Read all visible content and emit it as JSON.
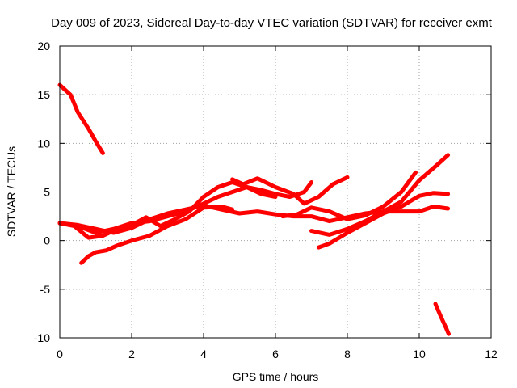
{
  "chart_data": {
    "type": "line",
    "title": "Day 009 of 2023, Sidereal Day-to-day VTEC variation (SDTVAR) for receiver exmt",
    "xlabel": "GPS time / hours",
    "ylabel": "SDTVAR / TECUs",
    "xlim": [
      0,
      12
    ],
    "ylim": [
      -10,
      20
    ],
    "xticks": [
      0,
      2,
      4,
      6,
      8,
      10,
      12
    ],
    "yticks": [
      -10,
      -5,
      0,
      5,
      10,
      15,
      20
    ],
    "grid": true,
    "legend": "none",
    "series_color": "#ff0000",
    "series": [
      {
        "name": "s1",
        "x": [
          0,
          0.3,
          0.5,
          0.8,
          1.0,
          1.2
        ],
        "y": [
          16,
          15,
          13.2,
          11.5,
          10.2,
          9
        ]
      },
      {
        "name": "s2",
        "x": [
          0,
          0.5,
          1.0,
          1.5,
          2.0,
          2.5,
          3.0,
          3.5,
          4.0,
          4.4,
          4.8,
          5.2,
          5.6,
          6.0,
          6.4,
          6.8,
          7.0
        ],
        "y": [
          1.8,
          1.5,
          0.8,
          1.2,
          1.8,
          2.0,
          2.5,
          3.0,
          3.8,
          4.5,
          5.0,
          5.5,
          5.2,
          4.8,
          4.5,
          5.0,
          6.0
        ]
      },
      {
        "name": "s3",
        "x": [
          0,
          0.5,
          1.0,
          1.5,
          2.0,
          2.5,
          3.0,
          3.5,
          4.0,
          4.5,
          5.0,
          5.5,
          6.0,
          6.5,
          7.0,
          7.5,
          8.0,
          8.5,
          9.0,
          9.5,
          10.0,
          10.4,
          10.8
        ],
        "y": [
          1.8,
          1.6,
          1.2,
          0.8,
          1.3,
          2.2,
          2.8,
          3.2,
          3.6,
          3.2,
          2.8,
          3.0,
          2.7,
          2.5,
          2.5,
          2.0,
          2.4,
          2.8,
          3.0,
          3.0,
          3.0,
          3.5,
          3.3
        ]
      },
      {
        "name": "s4",
        "x": [
          0,
          0.4,
          0.8,
          1.2,
          1.6,
          2.0,
          2.4,
          2.8,
          3.2,
          3.6,
          4.0,
          4.4,
          4.8,
          5.2,
          5.6,
          6.0
        ],
        "y": [
          1.8,
          1.5,
          0.3,
          0.5,
          1.2,
          1.6,
          2.4,
          1.5,
          2.2,
          3.0,
          4.5,
          5.5,
          6.0,
          5.5,
          4.8,
          4.5
        ]
      },
      {
        "name": "s5",
        "x": [
          0.6,
          0.8,
          1.0,
          1.3,
          1.6,
          2.0,
          2.5,
          3.0,
          3.5,
          4.0,
          4.5,
          4.8
        ],
        "y": [
          -2.3,
          -1.6,
          -1.2,
          -1.0,
          -0.5,
          0.0,
          0.5,
          1.5,
          2.2,
          3.4,
          3.5,
          3.2
        ]
      },
      {
        "name": "s6",
        "x": [
          4.8,
          5.1,
          5.5,
          6.0,
          6.5,
          6.8,
          7.2,
          7.6,
          8.0
        ],
        "y": [
          6.3,
          5.8,
          6.4,
          5.5,
          4.8,
          3.8,
          4.5,
          5.8,
          6.5
        ]
      },
      {
        "name": "s7",
        "x": [
          6.2,
          6.6,
          7.0,
          7.5,
          8.0,
          8.5,
          9.0,
          9.5,
          9.9
        ],
        "y": [
          2.5,
          2.7,
          3.4,
          3.0,
          2.2,
          2.6,
          3.5,
          5.0,
          7.0
        ]
      },
      {
        "name": "s8",
        "x": [
          7.2,
          7.5,
          8.0,
          8.5,
          9.0,
          9.5,
          10.0,
          10.4,
          10.8
        ],
        "y": [
          -0.7,
          -0.3,
          0.8,
          1.8,
          2.8,
          3.5,
          4.6,
          4.9,
          4.8
        ]
      },
      {
        "name": "s9",
        "x": [
          7.0,
          7.5,
          8.0,
          8.5,
          9.0,
          9.5,
          10.0,
          10.5,
          10.8
        ],
        "y": [
          1.0,
          0.6,
          1.2,
          2.0,
          3.0,
          4.0,
          6.2,
          7.8,
          8.8
        ]
      },
      {
        "name": "s10",
        "x": [
          10.45,
          10.6,
          10.75,
          10.82
        ],
        "y": [
          -6.5,
          -7.8,
          -9.0,
          -9.6
        ]
      }
    ]
  }
}
